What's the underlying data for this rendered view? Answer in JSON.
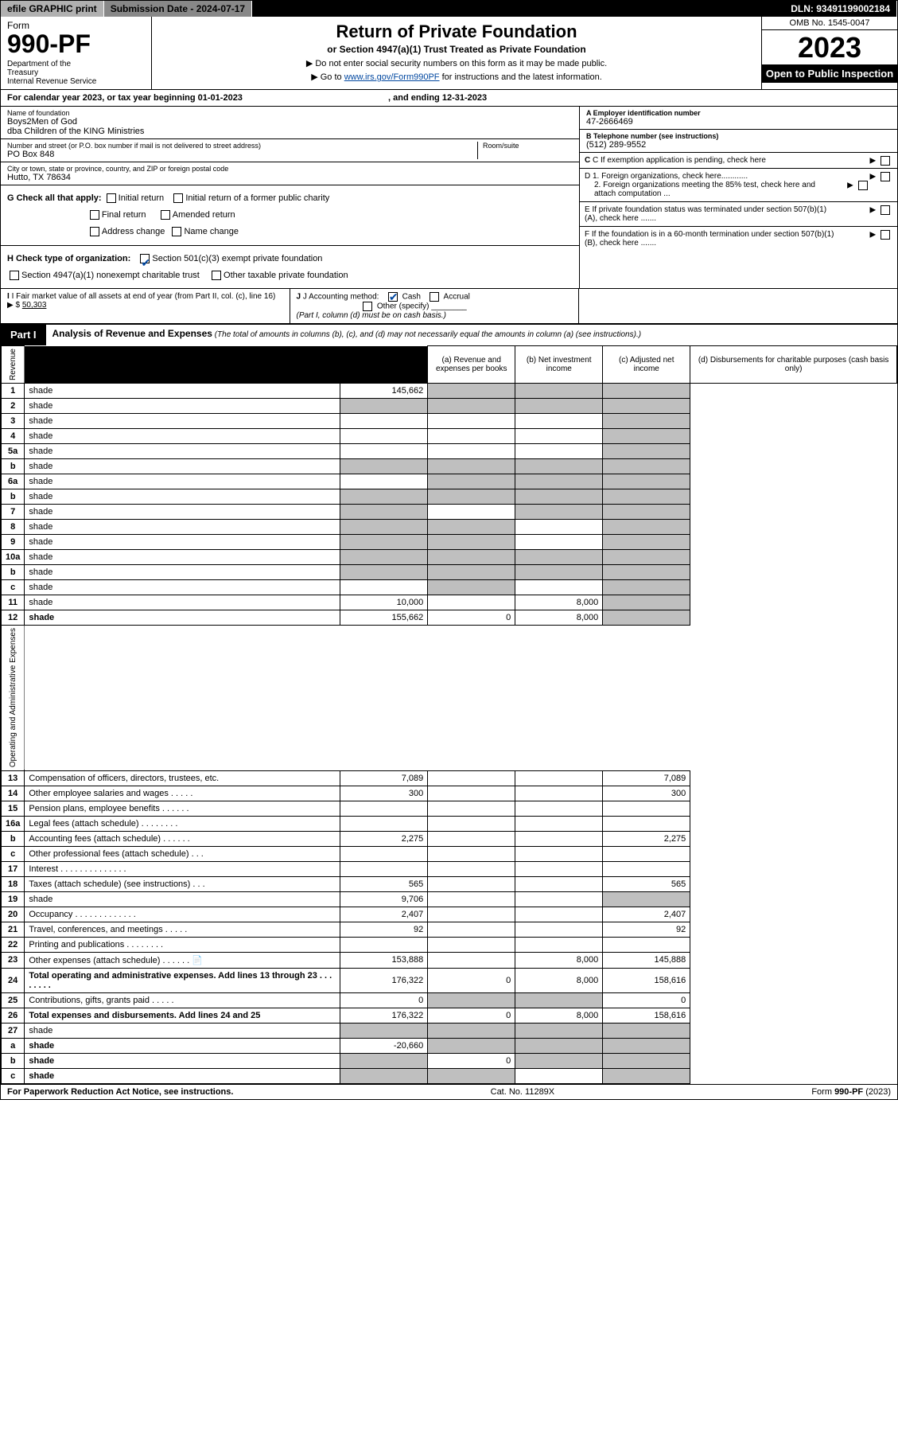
{
  "top": {
    "efile": "efile GRAPHIC print",
    "sub_label": "Submission Date - 2024-07-17",
    "dln": "DLN: 93491199002184"
  },
  "header": {
    "form_label": "Form",
    "form_num": "990-PF",
    "dept": "Department of the Treasury\nInternal Revenue Service",
    "title": "Return of Private Foundation",
    "subtitle": "or Section 4947(a)(1) Trust Treated as Private Foundation",
    "instr1": "▶ Do not enter social security numbers on this form as it may be made public.",
    "instr2_pre": "▶ Go to ",
    "instr2_link": "www.irs.gov/Form990PF",
    "instr2_post": " for instructions and the latest information.",
    "omb": "OMB No. 1545-0047",
    "year": "2023",
    "open": "Open to Public Inspection"
  },
  "cal": {
    "pre": "For calendar year 2023, or tax year beginning ",
    "begin": "01-01-2023",
    "mid": ", and ending ",
    "end": "12-31-2023"
  },
  "id": {
    "name_lbl": "Name of foundation",
    "name1": "Boys2Men of God",
    "name2": "dba Children of the KING Ministries",
    "addr_lbl": "Number and street (or P.O. box number if mail is not delivered to street address)",
    "addr": "PO Box 848",
    "room_lbl": "Room/suite",
    "city_lbl": "City or town, state or province, country, and ZIP or foreign postal code",
    "city": "Hutto, TX  78634",
    "ein_lbl": "A Employer identification number",
    "ein": "47-2666469",
    "tel_lbl": "B Telephone number (see instructions)",
    "tel": "(512) 289-9552",
    "c_lbl": "C If exemption application is pending, check here",
    "d1": "D 1. Foreign organizations, check here............",
    "d2": "2. Foreign organizations meeting the 85% test, check here and attach computation ...",
    "e": "E  If private foundation status was terminated under section 507(b)(1)(A), check here .......",
    "f": "F  If the foundation is in a 60-month termination under section 507(b)(1)(B), check here .......",
    "g_lbl": "G Check all that apply:",
    "g_initial": "Initial return",
    "g_initial_former": "Initial return of a former public charity",
    "g_final": "Final return",
    "g_amended": "Amended return",
    "g_address": "Address change",
    "g_name": "Name change",
    "h_lbl": "H Check type of organization:",
    "h_501": "Section 501(c)(3) exempt private foundation",
    "h_4947": "Section 4947(a)(1) nonexempt charitable trust",
    "h_other_tax": "Other taxable private foundation",
    "i_lbl": "I Fair market value of all assets at end of year (from Part II, col. (c), line 16)",
    "i_val": "50,303",
    "j_lbl": "J Accounting method:",
    "j_cash": "Cash",
    "j_accrual": "Accrual",
    "j_other": "Other (specify)",
    "j_note": "(Part I, column (d) must be on cash basis.)"
  },
  "part1": {
    "label": "Part I",
    "title": "Analysis of Revenue and Expenses",
    "note": "(The total of amounts in columns (b), (c), and (d) may not necessarily equal the amounts in column (a) (see instructions).)",
    "col_a": "(a) Revenue and expenses per books",
    "col_b": "(b) Net investment income",
    "col_c": "(c) Adjusted net income",
    "col_d": "(d) Disbursements for charitable purposes (cash basis only)",
    "section_rev": "Revenue",
    "section_exp": "Operating and Administrative Expenses"
  },
  "rows": [
    {
      "n": "1",
      "d": "shade",
      "a": "145,662",
      "b": "shade",
      "c": "shade"
    },
    {
      "n": "2",
      "d": "shade",
      "a": "shade",
      "b": "shade",
      "c": "shade"
    },
    {
      "n": "3",
      "d": "shade",
      "a": "",
      "b": "",
      "c": ""
    },
    {
      "n": "4",
      "d": "shade",
      "a": "",
      "b": "",
      "c": ""
    },
    {
      "n": "5a",
      "d": "shade",
      "a": "",
      "b": "",
      "c": ""
    },
    {
      "n": "b",
      "d": "shade",
      "a": "shade",
      "b": "shade",
      "c": "shade"
    },
    {
      "n": "6a",
      "d": "shade",
      "a": "",
      "b": "shade",
      "c": "shade"
    },
    {
      "n": "b",
      "d": "shade",
      "a": "shade",
      "b": "shade",
      "c": "shade"
    },
    {
      "n": "7",
      "d": "shade",
      "a": "shade",
      "b": "",
      "c": "shade"
    },
    {
      "n": "8",
      "d": "shade",
      "a": "shade",
      "b": "shade",
      "c": ""
    },
    {
      "n": "9",
      "d": "shade",
      "a": "shade",
      "b": "shade",
      "c": ""
    },
    {
      "n": "10a",
      "d": "shade",
      "a": "shade",
      "b": "shade",
      "c": "shade"
    },
    {
      "n": "b",
      "d": "shade",
      "a": "shade",
      "b": "shade",
      "c": "shade"
    },
    {
      "n": "c",
      "d": "shade",
      "a": "",
      "b": "shade",
      "c": ""
    },
    {
      "n": "11",
      "d": "shade",
      "a": "10,000",
      "b": "",
      "c": "8,000"
    },
    {
      "n": "12",
      "d": "shade",
      "a": "155,662",
      "b": "0",
      "c": "8,000",
      "bold": true
    },
    {
      "n": "13",
      "d": "Compensation of officers, directors, trustees, etc.",
      "a": "7,089",
      "b": "",
      "c": "",
      "db": "7,089"
    },
    {
      "n": "14",
      "d": "Other employee salaries and wages  .  .  .  .  .",
      "a": "300",
      "b": "",
      "c": "",
      "db": "300"
    },
    {
      "n": "15",
      "d": "Pension plans, employee benefits  .  .  .  .  .  .",
      "a": "",
      "b": "",
      "c": "",
      "db": ""
    },
    {
      "n": "16a",
      "d": "Legal fees (attach schedule)  .  .  .  .  .  .  .  .",
      "a": "",
      "b": "",
      "c": "",
      "db": ""
    },
    {
      "n": "b",
      "d": "Accounting fees (attach schedule)  .  .  .  .  .  .",
      "a": "2,275",
      "b": "",
      "c": "",
      "db": "2,275"
    },
    {
      "n": "c",
      "d": "Other professional fees (attach schedule)  .  .  .",
      "a": "",
      "b": "",
      "c": "",
      "db": ""
    },
    {
      "n": "17",
      "d": "Interest  .  .  .  .  .  .  .  .  .  .  .  .  .  .",
      "a": "",
      "b": "",
      "c": "",
      "db": ""
    },
    {
      "n": "18",
      "d": "Taxes (attach schedule) (see instructions)  .  .  .",
      "a": "565",
      "b": "",
      "c": "",
      "db": "565"
    },
    {
      "n": "19",
      "d": "shade",
      "a": "9,706",
      "b": "",
      "c": ""
    },
    {
      "n": "20",
      "d": "Occupancy  .  .  .  .  .  .  .  .  .  .  .  .  .",
      "a": "2,407",
      "b": "",
      "c": "",
      "db": "2,407"
    },
    {
      "n": "21",
      "d": "Travel, conferences, and meetings  .  .  .  .  .",
      "a": "92",
      "b": "",
      "c": "",
      "db": "92"
    },
    {
      "n": "22",
      "d": "Printing and publications  .  .  .  .  .  .  .  .",
      "a": "",
      "b": "",
      "c": "",
      "db": ""
    },
    {
      "n": "23",
      "d": "Other expenses (attach schedule)  .  .  .  .  .  . 📄",
      "a": "153,888",
      "b": "",
      "c": "8,000",
      "db": "145,888"
    },
    {
      "n": "24",
      "d": "Total operating and administrative expenses. Add lines 13 through 23  .  .  .  .  .  .  .  .",
      "a": "176,322",
      "b": "0",
      "c": "8,000",
      "db": "158,616",
      "bold": true
    },
    {
      "n": "25",
      "d": "Contributions, gifts, grants paid  .  .  .  .  .",
      "a": "0",
      "b": "shade",
      "c": "shade",
      "db": "0"
    },
    {
      "n": "26",
      "d": "Total expenses and disbursements. Add lines 24 and 25",
      "a": "176,322",
      "b": "0",
      "c": "8,000",
      "db": "158,616",
      "bold": true
    },
    {
      "n": "27",
      "d": "shade",
      "a": "shade",
      "b": "shade",
      "c": "shade"
    },
    {
      "n": "a",
      "d": "shade",
      "a": "-20,660",
      "b": "shade",
      "c": "shade",
      "bold": true
    },
    {
      "n": "b",
      "d": "shade",
      "a": "shade",
      "b": "0",
      "c": "shade",
      "bold": true
    },
    {
      "n": "c",
      "d": "shade",
      "a": "shade",
      "b": "shade",
      "c": "",
      "bold": true
    }
  ],
  "foot": {
    "l": "For Paperwork Reduction Act Notice, see instructions.",
    "c": "Cat. No. 11289X",
    "r": "Form 990-PF (2023)"
  }
}
